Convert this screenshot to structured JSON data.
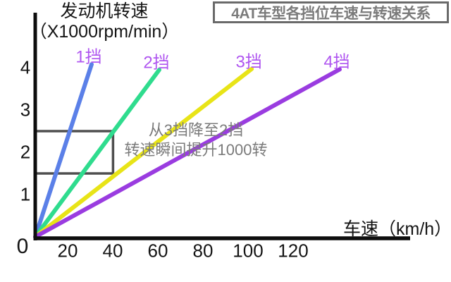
{
  "title_box": {
    "text": "4AT车型各挡位车速与转速关系"
  },
  "y_axis": {
    "title_line1": "发动机转速",
    "title_line2": "（X1000rpm/min）",
    "ticks": [
      4,
      3,
      2,
      1
    ],
    "origin_label": "0"
  },
  "x_axis": {
    "label": "车速（km/h）",
    "ticks": [
      20,
      40,
      60,
      80,
      100,
      120
    ]
  },
  "annotation": {
    "line1": "从3挡降至2挡",
    "line2": "转速瞬间提升1000转"
  },
  "colors": {
    "axis": "#0e0e0e",
    "gear_label": "#b057f0",
    "annotation_gray": "#7b7b7b",
    "highlight_border": "#4f4f4f",
    "title_gray": "#7b7b7b"
  },
  "chart_data": {
    "type": "line",
    "title": "4AT车型各挡位车速与转速关系",
    "xlabel": "车速（km/h）",
    "ylabel": "发动机转速（X1000rpm/min）",
    "xlim": [
      0,
      166
    ],
    "ylim": [
      0,
      4.6
    ],
    "x_ticks": [
      20,
      40,
      60,
      80,
      100,
      120
    ],
    "y_ticks": [
      1,
      2,
      3,
      4
    ],
    "grid": false,
    "legend_position": "labels-at-line-tops",
    "series": [
      {
        "name": "1挡",
        "color": "#5b80e8",
        "points": [
          [
            0,
            0
          ],
          [
            25,
            4.08
          ]
        ]
      },
      {
        "name": "2挡",
        "color": "#2fdc8e",
        "points": [
          [
            0,
            0
          ],
          [
            55,
            3.95
          ]
        ]
      },
      {
        "name": "3挡",
        "color": "#e8e417",
        "points": [
          [
            0,
            0
          ],
          [
            96,
            3.97
          ]
        ]
      },
      {
        "name": "4挡",
        "color": "#9a3ce0",
        "points": [
          [
            0,
            0
          ],
          [
            135,
            3.96
          ]
        ]
      }
    ],
    "highlight_box": {
      "speed_range": [
        0,
        34.5
      ],
      "rpm_range": [
        1.5,
        2.5
      ],
      "meaning": "从3挡降至2挡 转速瞬间提升1000转"
    }
  }
}
